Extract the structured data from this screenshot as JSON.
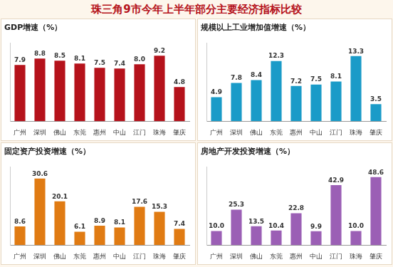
{
  "title": "珠三角9市今年上半年部分主要经济指标比较",
  "chart_data": [
    {
      "type": "bar",
      "title": "GDP增速（%）",
      "categories": [
        "广州",
        "深圳",
        "佛山",
        "东莞",
        "惠州",
        "中山",
        "江门",
        "珠海",
        "肇庆"
      ],
      "values": [
        7.9,
        8.8,
        8.5,
        8.1,
        7.5,
        7.4,
        8.0,
        9.2,
        4.8
      ],
      "value_labels": [
        "7.9",
        "8.8",
        "8.5",
        "8.1",
        "7.5",
        "7.4",
        "8.0",
        "9.2",
        "4.8"
      ],
      "color": "#b5121b",
      "ylim": [
        0,
        11
      ],
      "grid": false,
      "data_labels": true,
      "tick_labels": "x"
    },
    {
      "type": "bar",
      "title": "规模以上工业增加值增速（%）",
      "categories": [
        "广州",
        "深圳",
        "佛山",
        "东莞",
        "惠州",
        "中山",
        "江门",
        "珠海",
        "肇庆"
      ],
      "values": [
        4.9,
        7.8,
        8.4,
        12.3,
        7.2,
        7.5,
        8.1,
        13.3,
        3.5
      ],
      "value_labels": [
        "4.9",
        "7.8",
        "8.4",
        "12.3",
        "7.2",
        "7.5",
        "8.1",
        "13.3",
        "3.5"
      ],
      "color": "#1a9bc8",
      "ylim": [
        0,
        16
      ],
      "grid": false,
      "data_labels": true,
      "tick_labels": "x"
    },
    {
      "type": "bar",
      "title": "固定资产投资增速（%）",
      "categories": [
        "广州",
        "深圳",
        "佛山",
        "东莞",
        "惠州",
        "中山",
        "江门",
        "珠海",
        "肇庆"
      ],
      "values": [
        8.6,
        30.6,
        20.1,
        6.1,
        8.9,
        8.1,
        17.6,
        15.3,
        7.4
      ],
      "value_labels": [
        "8.6",
        "30.6",
        "20.1",
        "6.1",
        "8.9",
        "8.1",
        "17.6",
        "15.3",
        "7.4"
      ],
      "color": "#e07b13",
      "ylim": [
        0,
        36
      ],
      "grid": false,
      "data_labels": true,
      "tick_labels": "x"
    },
    {
      "type": "bar",
      "title": "房地产开发投资增速（%）",
      "categories": [
        "广州",
        "深圳",
        "佛山",
        "东莞",
        "惠州",
        "中山",
        "江门",
        "珠海",
        "肇庆"
      ],
      "values": [
        10.0,
        25.3,
        13.5,
        10.4,
        22.8,
        9.9,
        42.9,
        10.0,
        48.6
      ],
      "value_labels": [
        "10.0",
        "25.3",
        "13.5",
        "10.4",
        "22.8",
        "9.9",
        "42.9",
        "10.0",
        "48.6"
      ],
      "color": "#9b5fb5",
      "ylim": [
        0,
        56
      ],
      "grid": false,
      "data_labels": true,
      "tick_labels": "x"
    }
  ]
}
